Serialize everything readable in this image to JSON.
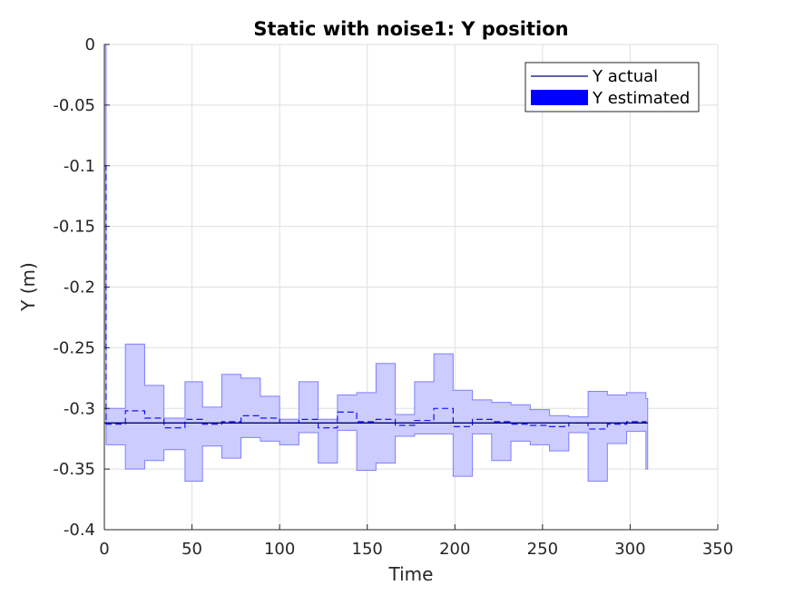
{
  "chart_data": {
    "type": "line",
    "title": "Static with noise1: Y position",
    "xlabel": "Time",
    "ylabel": "Y (m)",
    "xlim": [
      0,
      350
    ],
    "ylim": [
      -0.4,
      0
    ],
    "xticks": [
      0,
      50,
      100,
      150,
      200,
      250,
      300,
      350
    ],
    "yticks": [
      0,
      -0.05,
      -0.1,
      -0.15,
      -0.2,
      -0.25,
      -0.3,
      -0.35,
      -0.4
    ],
    "grid": true,
    "legend_position": "top-right",
    "colors": {
      "actual": "#00007f",
      "estimate": "#0000ff",
      "band_fill": "#ccccff",
      "band_edge": "#7f7fff"
    },
    "series": [
      {
        "name": "Y actual",
        "style": "solid",
        "x": [
          0,
          310
        ],
        "y": [
          -0.312,
          -0.312
        ]
      },
      {
        "name": "Y estimated",
        "style": "dashed-with-confidence-band",
        "segments": [
          {
            "x0": 0,
            "x1": 1,
            "lower": -0.25,
            "upper": 0.0,
            "mean": -0.1
          },
          {
            "x0": 1,
            "x1": 2,
            "lower": -0.33,
            "upper": -0.3,
            "mean": -0.313
          },
          {
            "x0": 2,
            "x1": 12,
            "lower": -0.33,
            "upper": -0.3,
            "mean": -0.313
          },
          {
            "x0": 12,
            "x1": 23,
            "lower": -0.35,
            "upper": -0.247,
            "mean": -0.302
          },
          {
            "x0": 23,
            "x1": 34,
            "lower": -0.343,
            "upper": -0.281,
            "mean": -0.308
          },
          {
            "x0": 34,
            "x1": 46,
            "lower": -0.334,
            "upper": -0.308,
            "mean": -0.316
          },
          {
            "x0": 46,
            "x1": 56,
            "lower": -0.36,
            "upper": -0.278,
            "mean": -0.309
          },
          {
            "x0": 56,
            "x1": 67,
            "lower": -0.331,
            "upper": -0.299,
            "mean": -0.313
          },
          {
            "x0": 67,
            "x1": 78,
            "lower": -0.341,
            "upper": -0.272,
            "mean": -0.311
          },
          {
            "x0": 78,
            "x1": 89,
            "lower": -0.324,
            "upper": -0.275,
            "mean": -0.306
          },
          {
            "x0": 89,
            "x1": 100,
            "lower": -0.327,
            "upper": -0.29,
            "mean": -0.308
          },
          {
            "x0": 100,
            "x1": 111,
            "lower": -0.33,
            "upper": -0.309,
            "mean": -0.312
          },
          {
            "x0": 111,
            "x1": 122,
            "lower": -0.32,
            "upper": -0.278,
            "mean": -0.309
          },
          {
            "x0": 122,
            "x1": 133,
            "lower": -0.345,
            "upper": -0.309,
            "mean": -0.316
          },
          {
            "x0": 133,
            "x1": 144,
            "lower": -0.318,
            "upper": -0.289,
            "mean": -0.303
          },
          {
            "x0": 144,
            "x1": 155,
            "lower": -0.351,
            "upper": -0.287,
            "mean": -0.311
          },
          {
            "x0": 155,
            "x1": 166,
            "lower": -0.345,
            "upper": -0.263,
            "mean": -0.309
          },
          {
            "x0": 166,
            "x1": 177,
            "lower": -0.323,
            "upper": -0.305,
            "mean": -0.314
          },
          {
            "x0": 177,
            "x1": 188,
            "lower": -0.321,
            "upper": -0.278,
            "mean": -0.31
          },
          {
            "x0": 188,
            "x1": 199,
            "lower": -0.321,
            "upper": -0.255,
            "mean": -0.3
          },
          {
            "x0": 199,
            "x1": 210,
            "lower": -0.356,
            "upper": -0.285,
            "mean": -0.315
          },
          {
            "x0": 210,
            "x1": 221,
            "lower": -0.321,
            "upper": -0.293,
            "mean": -0.309
          },
          {
            "x0": 221,
            "x1": 232,
            "lower": -0.343,
            "upper": -0.295,
            "mean": -0.311
          },
          {
            "x0": 232,
            "x1": 243,
            "lower": -0.327,
            "upper": -0.297,
            "mean": -0.313
          },
          {
            "x0": 243,
            "x1": 254,
            "lower": -0.33,
            "upper": -0.301,
            "mean": -0.314
          },
          {
            "x0": 254,
            "x1": 265,
            "lower": -0.335,
            "upper": -0.306,
            "mean": -0.315
          },
          {
            "x0": 265,
            "x1": 276,
            "lower": -0.32,
            "upper": -0.307,
            "mean": -0.312
          },
          {
            "x0": 276,
            "x1": 287,
            "lower": -0.36,
            "upper": -0.286,
            "mean": -0.317
          },
          {
            "x0": 287,
            "x1": 298,
            "lower": -0.329,
            "upper": -0.289,
            "mean": -0.313
          },
          {
            "x0": 298,
            "x1": 309,
            "lower": -0.319,
            "upper": -0.287,
            "mean": -0.311
          },
          {
            "x0": 309,
            "x1": 310,
            "lower": -0.35,
            "upper": -0.292,
            "mean": -0.312
          }
        ]
      }
    ]
  }
}
